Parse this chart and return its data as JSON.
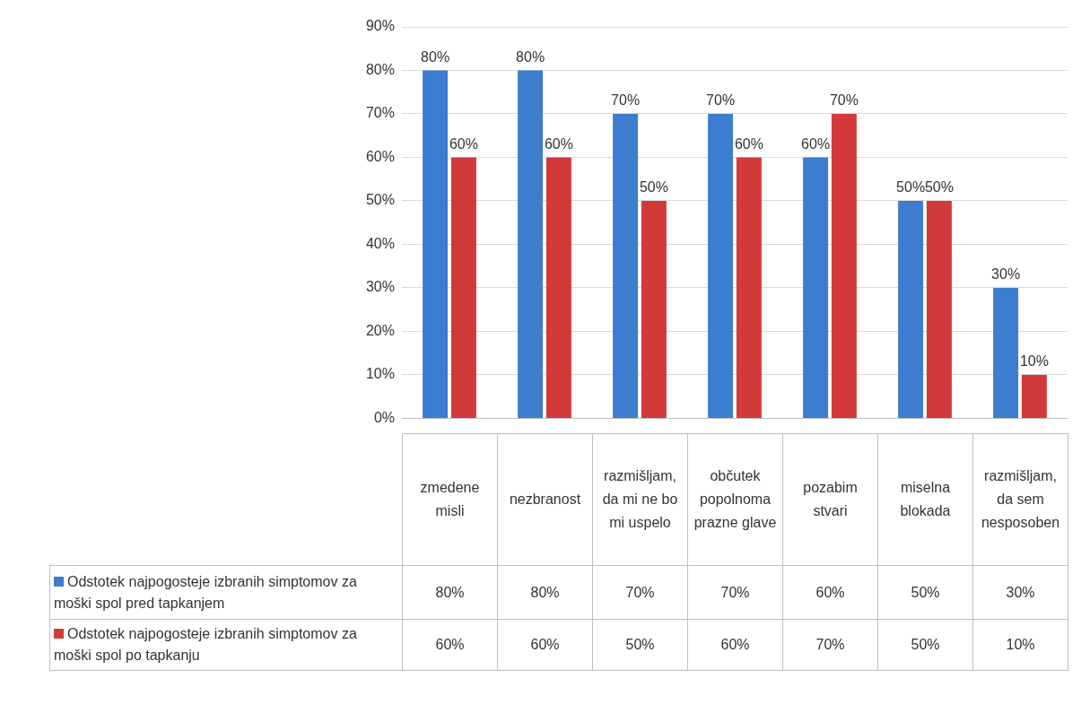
{
  "chart_data": {
    "type": "bar",
    "categories": [
      "zmedene misli",
      "nezbranost",
      "razmišljam, da mi ne bo mi uspelo",
      "občutek popolnoma prazne glave",
      "pozabim stvari",
      "miselna blokada",
      "razmišljam, da sem nesposoben"
    ],
    "series": [
      {
        "name": "Odstotek najpogosteje izbranih simptomov za moški spol pred tapkanjem",
        "color": "#3c7dd0",
        "values": [
          80,
          80,
          70,
          70,
          60,
          50,
          30
        ],
        "value_labels": [
          "80%",
          "80%",
          "70%",
          "70%",
          "60%",
          "50%",
          "30%"
        ]
      },
      {
        "name": "Odstotek najpogosteje izbranih simptomov za moški spol po tapkanju",
        "color": "#d23a3a",
        "values": [
          60,
          60,
          50,
          60,
          70,
          50,
          10
        ],
        "value_labels": [
          "60%",
          "60%",
          "50%",
          "60%",
          "70%",
          "50%",
          "10%"
        ]
      }
    ],
    "ylim": [
      0,
      90
    ],
    "yticks": [
      {
        "value": 0,
        "label": "0%"
      },
      {
        "value": 10,
        "label": "10%"
      },
      {
        "value": 20,
        "label": "20%"
      },
      {
        "value": 30,
        "label": "30%"
      },
      {
        "value": 40,
        "label": "40%"
      },
      {
        "value": 50,
        "label": "50%"
      },
      {
        "value": 60,
        "label": "60%"
      },
      {
        "value": 70,
        "label": "70%"
      },
      {
        "value": 80,
        "label": "80%"
      },
      {
        "value": 90,
        "label": "90%"
      }
    ],
    "grid": "y",
    "legend": "bottom left"
  }
}
